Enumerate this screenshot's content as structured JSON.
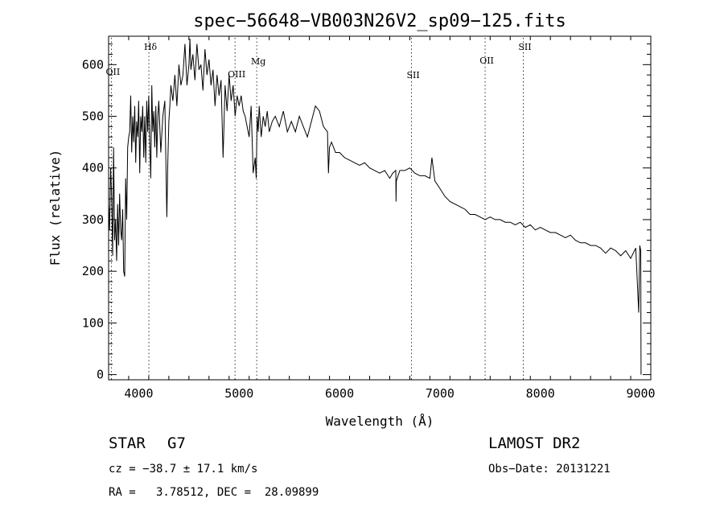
{
  "chart_data": {
    "type": "line",
    "title": "spec−56648−VB003N26V2_sp09−125.fits",
    "xlabel": "Wavelength (Å)",
    "ylabel": "Flux (relative)",
    "xlim": [
      3700,
      9100
    ],
    "ylim": [
      -10,
      655
    ],
    "xticks": [
      4000,
      5000,
      6000,
      7000,
      8000,
      9000
    ],
    "yticks": [
      0,
      100,
      200,
      300,
      400,
      500,
      600
    ],
    "grid": false,
    "series": [
      {
        "x": [
          3700,
          3710,
          3720,
          3730,
          3740,
          3750,
          3760,
          3770,
          3780,
          3790,
          3800,
          3810,
          3820,
          3830,
          3840,
          3850,
          3860,
          3870,
          3880,
          3890,
          3900,
          3910,
          3920,
          3930,
          3940,
          3950,
          3960,
          3970,
          3980,
          3990,
          4000,
          4010,
          4020,
          4030,
          4040,
          4050,
          4060,
          4070,
          4080,
          4090,
          4100,
          4110,
          4120,
          4130,
          4140,
          4150,
          4160,
          4170,
          4180,
          4190,
          4200,
          4220,
          4240,
          4260,
          4280,
          4290,
          4300,
          4310,
          4320,
          4340,
          4360,
          4380,
          4400,
          4420,
          4440,
          4460,
          4480,
          4500,
          4510,
          4520,
          4540,
          4560,
          4580,
          4600,
          4620,
          4640,
          4660,
          4680,
          4700,
          4720,
          4740,
          4760,
          4780,
          4800,
          4820,
          4840,
          4860,
          4880,
          4900,
          4920,
          4940,
          4960,
          4980,
          5000,
          5020,
          5040,
          5060,
          5080,
          5100,
          5120,
          5140,
          5160,
          5170,
          5180,
          5190,
          5200,
          5220,
          5240,
          5260,
          5280,
          5300,
          5330,
          5360,
          5400,
          5440,
          5480,
          5520,
          5560,
          5600,
          5640,
          5680,
          5720,
          5760,
          5800,
          5840,
          5880,
          5890,
          5900,
          5920,
          5960,
          6000,
          6050,
          6100,
          6150,
          6200,
          6250,
          6300,
          6350,
          6400,
          6450,
          6500,
          6530,
          6560,
          6563,
          6566,
          6600,
          6650,
          6700,
          6750,
          6800,
          6850,
          6900,
          6920,
          6950,
          7000,
          7050,
          7100,
          7150,
          7200,
          7250,
          7300,
          7350,
          7400,
          7450,
          7500,
          7550,
          7600,
          7650,
          7700,
          7750,
          7800,
          7850,
          7900,
          7950,
          8000,
          8050,
          8100,
          8150,
          8200,
          8250,
          8300,
          8350,
          8400,
          8450,
          8500,
          8550,
          8600,
          8650,
          8700,
          8750,
          8800,
          8850,
          8900,
          8950,
          8980,
          8990,
          9000,
          9003
        ],
        "y": [
          330,
          280,
          400,
          350,
          230,
          440,
          260,
          300,
          220,
          330,
          250,
          350,
          280,
          260,
          320,
          200,
          190,
          380,
          300,
          440,
          460,
          470,
          540,
          430,
          500,
          450,
          520,
          410,
          490,
          460,
          530,
          390,
          500,
          470,
          520,
          420,
          500,
          410,
          530,
          470,
          540,
          450,
          380,
          560,
          470,
          510,
          440,
          520,
          420,
          500,
          530,
          430,
          500,
          530,
          305,
          410,
          490,
          520,
          560,
          530,
          580,
          520,
          600,
          560,
          580,
          640,
          560,
          600,
          650,
          590,
          620,
          570,
          640,
          590,
          600,
          550,
          630,
          580,
          610,
          560,
          590,
          520,
          580,
          540,
          570,
          420,
          560,
          510,
          580,
          530,
          560,
          500,
          540,
          520,
          540,
          510,
          500,
          480,
          460,
          520,
          390,
          420,
          380,
          500,
          470,
          520,
          460,
          500,
          480,
          510,
          470,
          490,
          500,
          480,
          510,
          470,
          490,
          470,
          500,
          480,
          460,
          490,
          520,
          510,
          480,
          470,
          390,
          440,
          450,
          430,
          430,
          420,
          415,
          410,
          405,
          410,
          400,
          395,
          390,
          395,
          380,
          390,
          395,
          335,
          375,
          395,
          395,
          400,
          390,
          385,
          385,
          380,
          420,
          375,
          360,
          345,
          335,
          330,
          325,
          320,
          310,
          310,
          305,
          300,
          305,
          300,
          300,
          295,
          295,
          290,
          295,
          285,
          290,
          280,
          285,
          280,
          275,
          275,
          270,
          265,
          270,
          260,
          255,
          255,
          250,
          250,
          245,
          235,
          245,
          240,
          230,
          240,
          225,
          245,
          120,
          250,
          240,
          0
        ]
      }
    ],
    "line_markers": [
      {
        "label": "OII",
        "x": 3727
      },
      {
        "label": "Hδ",
        "x": 4101
      },
      {
        "label": "OIII",
        "x": 4959
      },
      {
        "label": "Mg",
        "x": 5175
      },
      {
        "label": "SII",
        "x": 6717
      },
      {
        "label": "OII",
        "x": 7450
      },
      {
        "label": "SII",
        "x": 7830
      }
    ]
  },
  "info": {
    "object_type": "STAR",
    "subclass": "G7",
    "survey": "LAMOST DR2",
    "redshift_text": "cz = −38.7 ± 17.1 km/s",
    "obs_date_text": "Obs−Date: 20131221",
    "coords_text": "RA =   3.78512, DEC =  28.09899"
  }
}
